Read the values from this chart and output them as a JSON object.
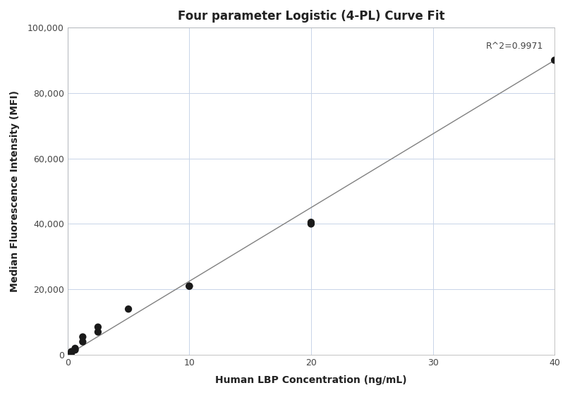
{
  "title": "Four parameter Logistic (4-PL) Curve Fit",
  "xlabel": "Human LBP Concentration (ng/mL)",
  "ylabel": "Median Fluorescence Intensity (MFI)",
  "r_squared": "R^2=0.9971",
  "scatter_x": [
    0.313,
    0.313,
    0.625,
    0.625,
    1.25,
    1.25,
    2.5,
    2.5,
    5.0,
    10.0,
    10.0,
    20.0,
    20.0,
    40.0
  ],
  "scatter_y": [
    500,
    1000,
    1500,
    2000,
    4000,
    5500,
    7000,
    8500,
    14000,
    21000,
    21000,
    40000,
    40500,
    90000
  ],
  "line_x": [
    0.0,
    40.0
  ],
  "line_y": [
    0.0,
    90000
  ],
  "xlim": [
    0,
    40
  ],
  "ylim": [
    0,
    100000
  ],
  "xticks": [
    0,
    10,
    20,
    30,
    40
  ],
  "yticks": [
    0,
    20000,
    40000,
    60000,
    80000,
    100000
  ],
  "ytick_labels": [
    "0",
    "20,000",
    "40,000",
    "60,000",
    "80,000",
    "100,000"
  ],
  "marker_color": "#1a1a1a",
  "marker_size": 55,
  "line_color": "#808080",
  "line_width": 1.0,
  "grid_color": "#c8d4e8",
  "background_color": "#ffffff",
  "title_fontsize": 12,
  "label_fontsize": 10,
  "tick_fontsize": 9,
  "annotation_fontsize": 9
}
